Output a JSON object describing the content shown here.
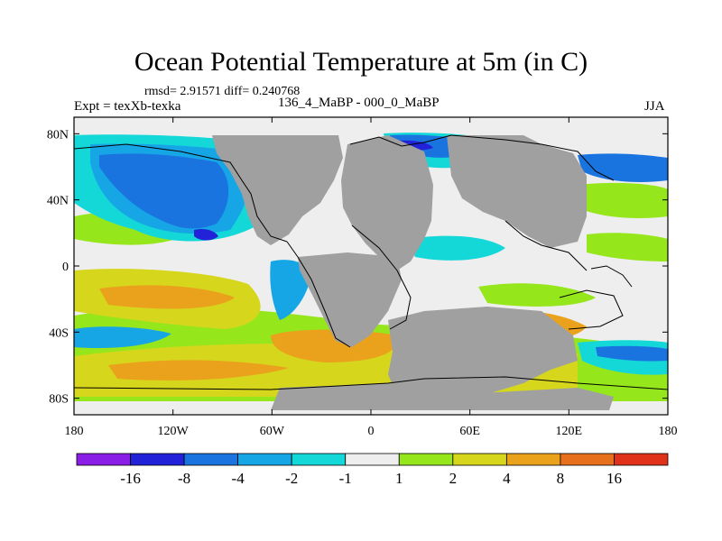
{
  "title": "Ocean Potential Temperature at 5m (in C)",
  "stats": "rmsd= 2.91571 diff= 0.240768",
  "expt": "Expt = texXb-texka",
  "period": "136_4_MaBP - 000_0_MaBP",
  "season": "JJA",
  "chart_data": {
    "type": "heatmap",
    "x_ticks": [
      "180",
      "120W",
      "60W",
      "0",
      "60E",
      "120E",
      "180"
    ],
    "y_ticks": [
      "80N",
      "40N",
      "0",
      "40S",
      "80S"
    ],
    "lon_range": [
      -180,
      180
    ],
    "lat_range": [
      -90,
      90
    ],
    "grid": false,
    "colorbar": {
      "labels": [
        "-16",
        "-8",
        "-4",
        "-2",
        "-1",
        "1",
        "2",
        "4",
        "8",
        "16"
      ],
      "colors": [
        "#8a1ee6",
        "#2222d8",
        "#1a74e0",
        "#16a6e6",
        "#14d8d8",
        "#eeeeee",
        "#96e61c",
        "#d6d61c",
        "#eaa21c",
        "#e6701c",
        "#e0321a"
      ]
    },
    "land_color": "#a0a0a0"
  }
}
